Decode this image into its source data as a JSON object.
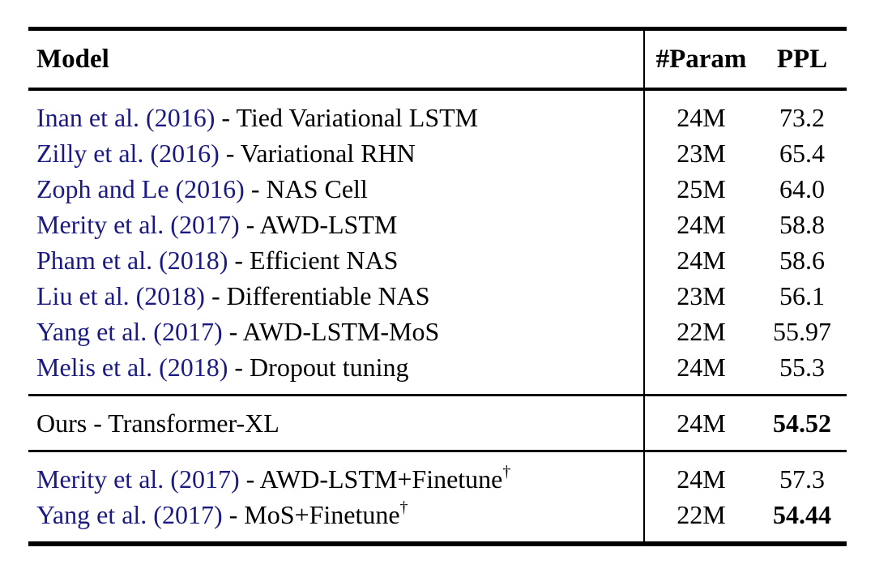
{
  "table": {
    "headers": {
      "model": "Model",
      "param": "#Param",
      "ppl": "PPL"
    },
    "dagger_symbol": "†",
    "colors": {
      "citation_blue": "#1a1a82",
      "text": "#000000",
      "rule": "#000000",
      "background": "#ffffff"
    },
    "sections": [
      {
        "name": "baselines",
        "rows": [
          {
            "cite": "Inan et al. (2016)",
            "rest": " - Tied Variational LSTM",
            "param": "24M",
            "ppl": "73.2",
            "ppl_bold": false,
            "dagger": false
          },
          {
            "cite": "Zilly et al. (2016)",
            "rest": " - Variational RHN",
            "param": "23M",
            "ppl": "65.4",
            "ppl_bold": false,
            "dagger": false
          },
          {
            "cite": "Zoph and Le (2016)",
            "rest": " - NAS Cell",
            "param": "25M",
            "ppl": "64.0",
            "ppl_bold": false,
            "dagger": false
          },
          {
            "cite": "Merity et al. (2017)",
            "rest": " - AWD-LSTM",
            "param": "24M",
            "ppl": "58.8",
            "ppl_bold": false,
            "dagger": false
          },
          {
            "cite": "Pham et al. (2018)",
            "rest": " - Efficient NAS",
            "param": "24M",
            "ppl": "58.6",
            "ppl_bold": false,
            "dagger": false
          },
          {
            "cite": "Liu et al. (2018)",
            "rest": " - Differentiable NAS",
            "param": "23M",
            "ppl": "56.1",
            "ppl_bold": false,
            "dagger": false
          },
          {
            "cite": "Yang et al. (2017)",
            "rest": " - AWD-LSTM-MoS",
            "param": "22M",
            "ppl": "55.97",
            "ppl_bold": false,
            "dagger": false
          },
          {
            "cite": "Melis et al. (2018)",
            "rest": " - Dropout tuning",
            "param": "24M",
            "ppl": "55.3",
            "ppl_bold": false,
            "dagger": false
          }
        ]
      },
      {
        "name": "ours",
        "rows": [
          {
            "cite": "",
            "rest": "Ours - Transformer-XL",
            "param": "24M",
            "ppl": "54.52",
            "ppl_bold": true,
            "dagger": false
          }
        ]
      },
      {
        "name": "finetuned",
        "rows": [
          {
            "cite": "Merity et al. (2017)",
            "rest": " - AWD-LSTM+Finetune",
            "param": "24M",
            "ppl": "57.3",
            "ppl_bold": false,
            "dagger": true
          },
          {
            "cite": "Yang et al. (2017)",
            "rest": " - MoS+Finetune",
            "param": "22M",
            "ppl": "54.44",
            "ppl_bold": true,
            "dagger": true
          }
        ]
      }
    ]
  }
}
